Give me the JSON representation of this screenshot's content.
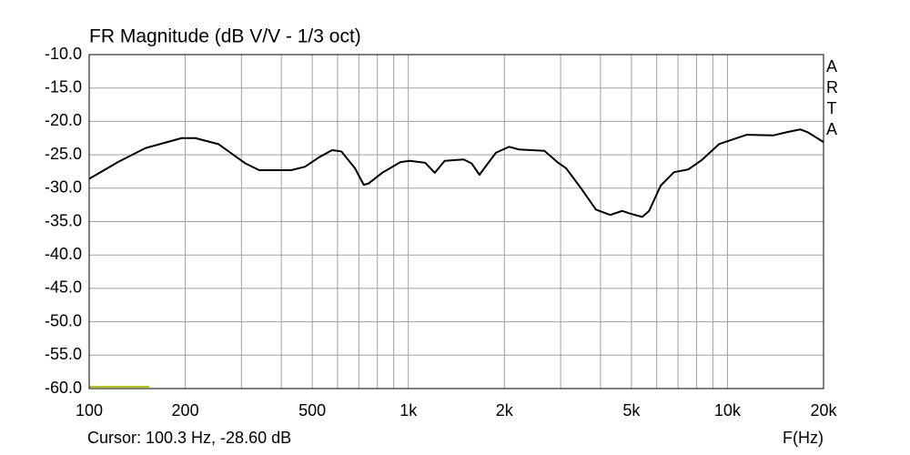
{
  "chart_data": {
    "type": "line",
    "title": "FR Magnitude (dB V/V - 1/3 oct)",
    "brand": "ARTA",
    "cursor": "Cursor: 100.3 Hz, -28.60 dB",
    "x_label": "F(Hz)",
    "log_x": true,
    "grid": true,
    "xlim": [
      100,
      20000
    ],
    "ylim": [
      -60,
      -10
    ],
    "xticks": [
      100,
      200,
      500,
      {
        "value": 1000,
        "label": "1k"
      },
      {
        "value": 2000,
        "label": "2k"
      },
      {
        "value": 5000,
        "label": "5k"
      },
      {
        "value": 10000,
        "label": "10k"
      },
      {
        "value": 20000,
        "label": "20k"
      }
    ],
    "xgrid": [
      300,
      400,
      600,
      700,
      800,
      900,
      3000,
      4000,
      6000,
      7000,
      8000,
      9000
    ],
    "yticks": [
      {
        "value": -10,
        "label": "-10.0"
      },
      {
        "value": -15,
        "label": "-15.0"
      },
      {
        "value": -20,
        "label": "-20.0"
      },
      {
        "value": -25,
        "label": "-25.0"
      },
      {
        "value": -30,
        "label": "-30.0"
      },
      {
        "value": -35,
        "label": "-35.0"
      },
      {
        "value": -40,
        "label": "-40.0"
      },
      {
        "value": -45,
        "label": "-45.0"
      },
      {
        "value": -50,
        "label": "-50.0"
      },
      {
        "value": -55,
        "label": "-55.0"
      },
      {
        "value": -60,
        "label": "-60.0"
      }
    ],
    "series": [
      {
        "color": "#000000",
        "x": [
          100,
          123,
          150,
          195,
          215,
          254,
          309,
          341,
          429,
          474,
          524,
          577,
          617,
          680,
          725,
          750,
          828,
          945,
          1010,
          1130,
          1210,
          1300,
          1490,
          1580,
          1670,
          1880,
          2070,
          2220,
          2670,
          2930,
          3120,
          3500,
          3870,
          4290,
          4680,
          4950,
          5410,
          5680,
          6180,
          6800,
          7530,
          8300,
          9410,
          10400,
          11500,
          13900,
          15400,
          16900,
          17800,
          20000
        ],
        "values": [
          -28.6,
          -26.1,
          -24.0,
          -22.5,
          -22.5,
          -23.4,
          -26.3,
          -27.3,
          -27.3,
          -26.8,
          -25.4,
          -24.3,
          -24.5,
          -27.0,
          -29.5,
          -29.3,
          -27.7,
          -26.1,
          -25.9,
          -26.2,
          -27.7,
          -25.9,
          -25.7,
          -26.3,
          -28.0,
          -24.7,
          -23.8,
          -24.2,
          -24.4,
          -26.1,
          -27.0,
          -30.2,
          -33.2,
          -34.0,
          -33.4,
          -33.8,
          -34.3,
          -33.4,
          -29.6,
          -27.6,
          -27.2,
          -25.8,
          -23.4,
          -22.7,
          -22.0,
          -22.1,
          -21.6,
          -21.2,
          -21.6,
          -23.1
        ]
      }
    ]
  }
}
